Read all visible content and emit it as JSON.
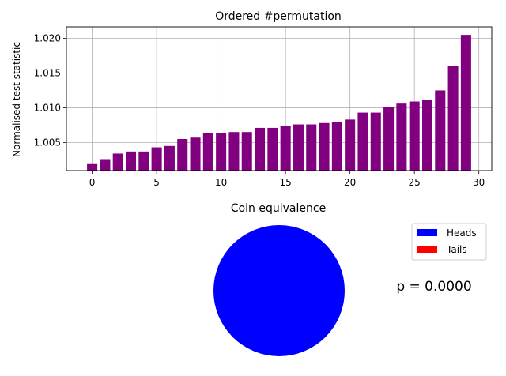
{
  "chart_data": [
    {
      "type": "bar",
      "title": "Ordered #permutation",
      "xlabel": "",
      "ylabel": "Normalised test statistic",
      "x": [
        0,
        1,
        2,
        3,
        4,
        5,
        6,
        7,
        8,
        9,
        10,
        11,
        12,
        13,
        14,
        15,
        16,
        17,
        18,
        19,
        20,
        21,
        22,
        23,
        24,
        25,
        26,
        27,
        28,
        29
      ],
      "values": [
        1.002,
        1.0026,
        1.0034,
        1.0037,
        1.0037,
        1.0043,
        1.0045,
        1.0055,
        1.0057,
        1.0063,
        1.0063,
        1.0065,
        1.0065,
        1.0071,
        1.0071,
        1.0074,
        1.0076,
        1.0076,
        1.0078,
        1.0079,
        1.0083,
        1.0093,
        1.0093,
        1.0101,
        1.0106,
        1.0109,
        1.0111,
        1.0125,
        1.016,
        1.0205
      ],
      "xlim": [
        -2,
        31
      ],
      "ylim": [
        1.00095,
        1.02165
      ],
      "xticks": [
        0,
        5,
        10,
        15,
        20,
        25,
        30
      ],
      "yticks": [
        1.005,
        1.01,
        1.015,
        1.02
      ],
      "ytick_labels": [
        "1.005",
        "1.010",
        "1.015",
        "1.020"
      ],
      "grid": true,
      "bar_color": "#800080"
    },
    {
      "type": "pie",
      "title": "Coin equivalence",
      "labels": [
        "Heads",
        "Tails"
      ],
      "values": [
        1.0,
        0.0
      ],
      "colors": [
        "#0000ff",
        "#ff0000"
      ],
      "legend": "top-right",
      "annotation": "p = 0.0000"
    }
  ]
}
